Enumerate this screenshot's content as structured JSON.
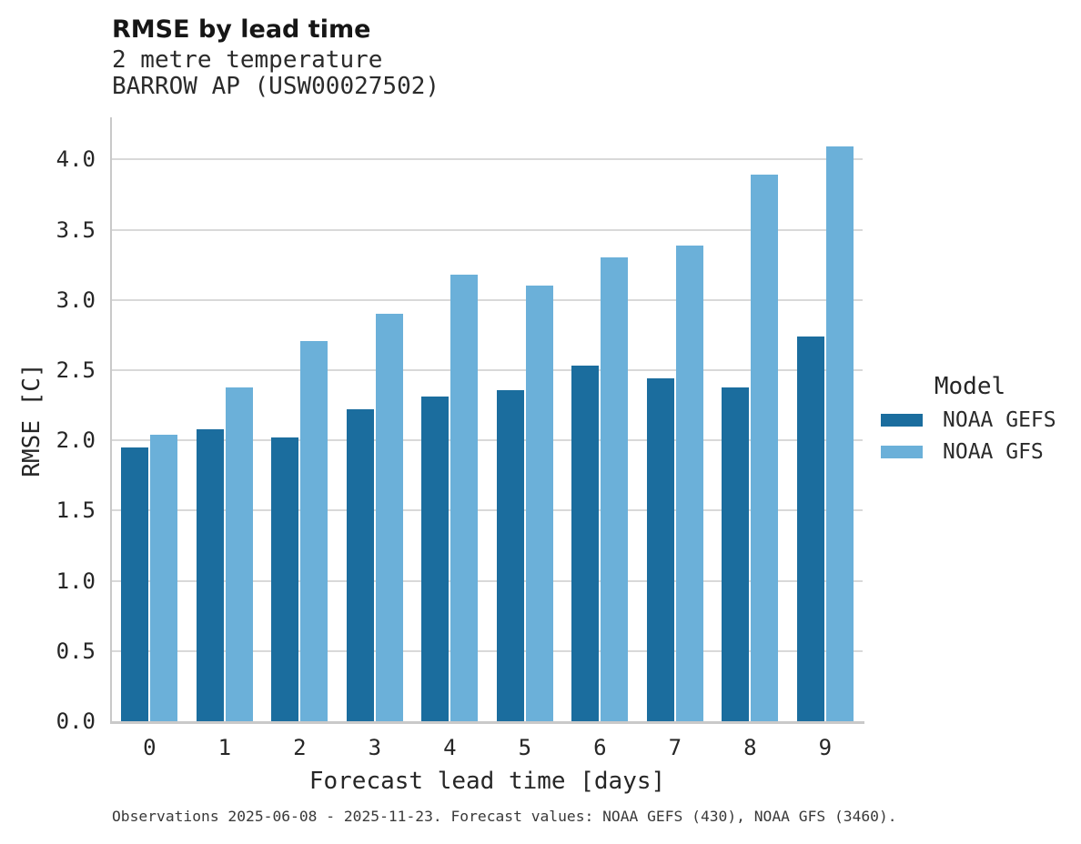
{
  "header": {
    "title": "RMSE by lead time",
    "subtitle_line1": "2 metre temperature",
    "subtitle_line2": "BARROW AP (USW00027502)"
  },
  "chart_data": {
    "type": "bar",
    "title": "RMSE by lead time",
    "subtitle": [
      "2 metre temperature",
      "BARROW AP (USW00027502)"
    ],
    "xlabel": "Forecast lead time [days]",
    "ylabel": "RMSE [C]",
    "categories": [
      "0",
      "1",
      "2",
      "3",
      "4",
      "5",
      "6",
      "7",
      "8",
      "9"
    ],
    "series": [
      {
        "name": "NOAA GEFS",
        "color": "#1b6d9e",
        "values": [
          1.95,
          2.08,
          2.02,
          2.22,
          2.31,
          2.36,
          2.53,
          2.44,
          2.38,
          2.74
        ]
      },
      {
        "name": "NOAA GFS",
        "color": "#6bb0d9",
        "values": [
          2.04,
          2.38,
          2.71,
          2.9,
          3.18,
          3.1,
          3.3,
          3.39,
          3.89,
          4.09
        ]
      }
    ],
    "ylim": [
      0,
      4.3
    ],
    "yticks": [
      0.0,
      0.5,
      1.0,
      1.5,
      2.0,
      2.5,
      3.0,
      3.5,
      4.0
    ],
    "grid": "horizontal",
    "legend_position": "right"
  },
  "legend": {
    "title": "Model",
    "items": [
      {
        "label": "NOAA GEFS",
        "color": "#1b6d9e"
      },
      {
        "label": "NOAA GFS",
        "color": "#6bb0d9"
      }
    ]
  },
  "caption": "Observations 2025-06-08 - 2025-11-23. Forecast values: NOAA GEFS (430), NOAA GFS (3460)."
}
